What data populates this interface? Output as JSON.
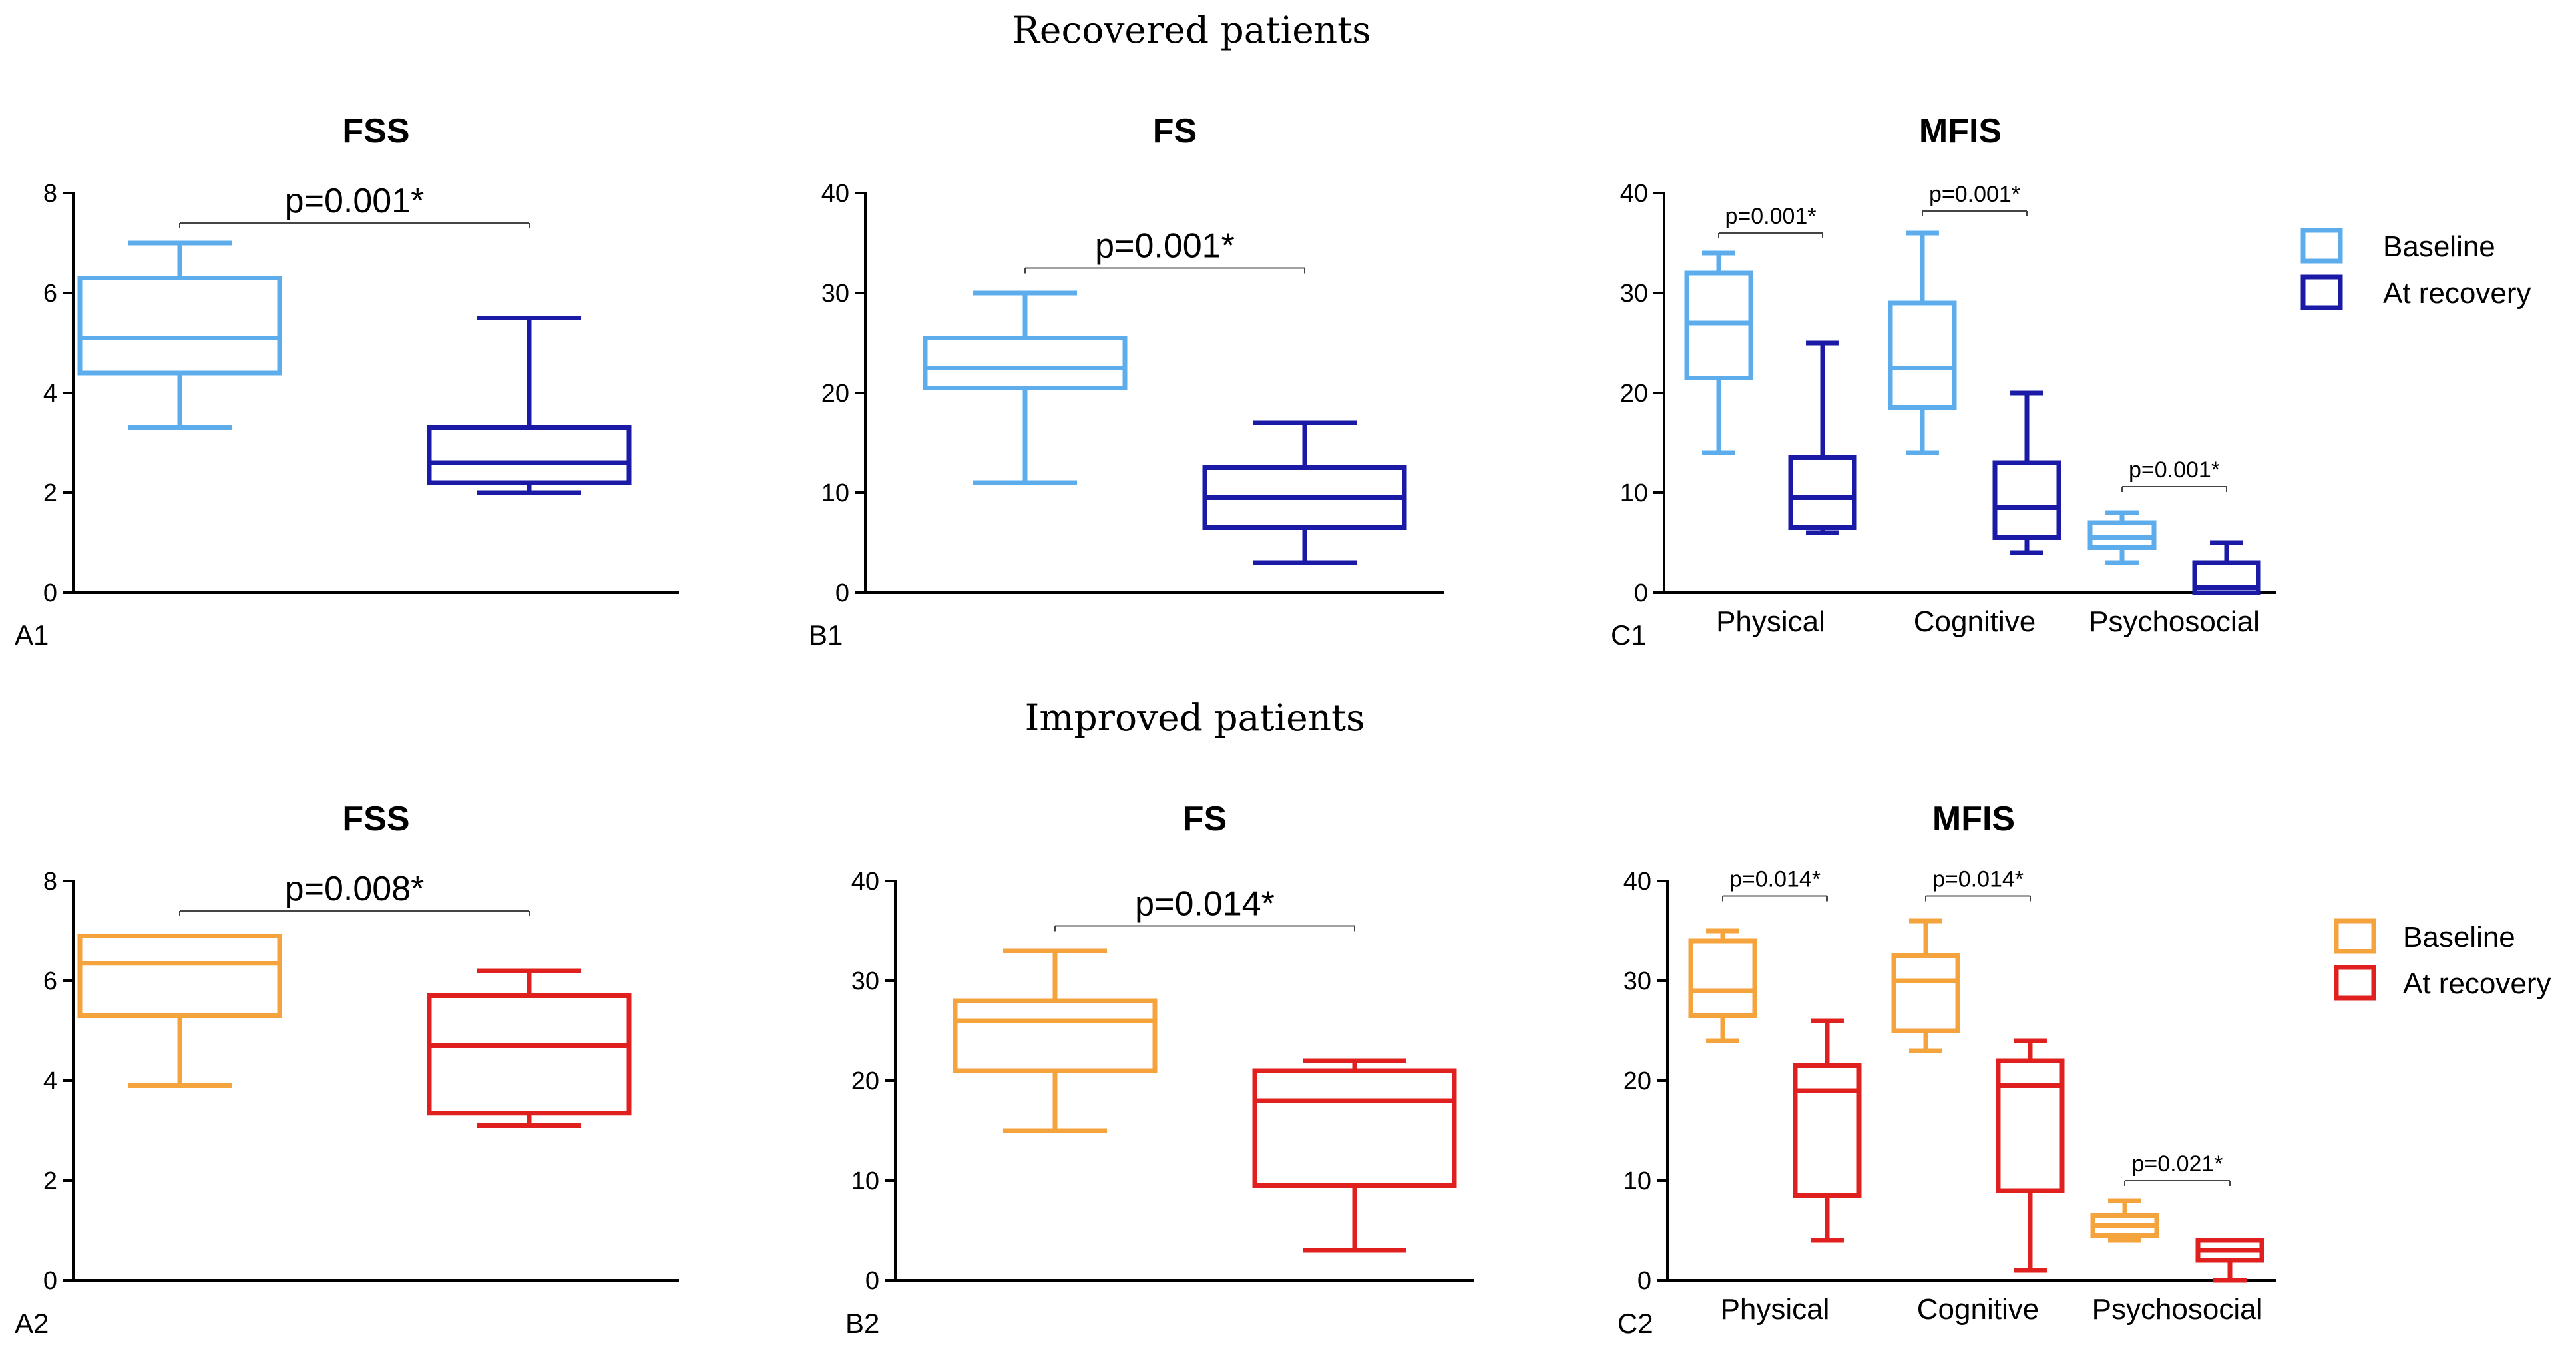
{
  "sections": [
    {
      "title": "Recovered patients"
    },
    {
      "title": "Improved patients"
    }
  ],
  "legends": [
    {
      "items": [
        {
          "label": "Baseline",
          "color": "#5DADEC"
        },
        {
          "label": "At recovery",
          "color": "#1A1AA6"
        }
      ]
    },
    {
      "items": [
        {
          "label": "Baseline",
          "color": "#F5A33C"
        },
        {
          "label": "At recovery",
          "color": "#E0201F"
        }
      ]
    }
  ],
  "chart_data": [
    {
      "type": "box",
      "panel_label": "A1",
      "title": "FSS",
      "ylim": [
        0,
        8
      ],
      "yticks": [
        "0",
        "2",
        "4",
        "6",
        "8"
      ],
      "categories": [
        ""
      ],
      "series": [
        {
          "name": "Baseline",
          "color": "#5DADEC",
          "boxes": [
            {
              "min": 3.3,
              "q1": 4.4,
              "median": 5.1,
              "q3": 6.3,
              "max": 7.0
            }
          ]
        },
        {
          "name": "At recovery",
          "color": "#1A1AA6",
          "boxes": [
            {
              "min": 2.0,
              "q1": 2.2,
              "median": 2.6,
              "q3": 3.3,
              "max": 5.5
            }
          ]
        }
      ],
      "annotations": [
        {
          "text": "p=0.001*",
          "category": 0,
          "y": 7.4
        }
      ]
    },
    {
      "type": "box",
      "panel_label": "B1",
      "title": "FS",
      "ylim": [
        0,
        40
      ],
      "yticks": [
        "0",
        "10",
        "20",
        "30",
        "40"
      ],
      "categories": [
        ""
      ],
      "series": [
        {
          "name": "Baseline",
          "color": "#5DADEC",
          "boxes": [
            {
              "min": 11,
              "q1": 20.5,
              "median": 22.5,
              "q3": 25.5,
              "max": 30
            }
          ]
        },
        {
          "name": "At recovery",
          "color": "#1A1AA6",
          "boxes": [
            {
              "min": 3,
              "q1": 6.5,
              "median": 9.5,
              "q3": 12.5,
              "max": 17
            }
          ]
        }
      ],
      "annotations": [
        {
          "text": "p=0.001*",
          "category": 0,
          "y": 32.5
        }
      ]
    },
    {
      "type": "box",
      "panel_label": "C1",
      "title": "MFIS",
      "ylim": [
        0,
        40
      ],
      "yticks": [
        "0",
        "10",
        "20",
        "30",
        "40"
      ],
      "categories": [
        "Physical",
        "Cognitive",
        "Psychosocial"
      ],
      "series": [
        {
          "name": "Baseline",
          "color": "#5DADEC",
          "boxes": [
            {
              "min": 14,
              "q1": 21.5,
              "median": 27,
              "q3": 32,
              "max": 34
            },
            {
              "min": 14,
              "q1": 18.5,
              "median": 22.5,
              "q3": 29,
              "max": 36
            },
            {
              "min": 3,
              "q1": 4.5,
              "median": 5.5,
              "q3": 7,
              "max": 8
            }
          ]
        },
        {
          "name": "At recovery",
          "color": "#1A1AA6",
          "boxes": [
            {
              "min": 6,
              "q1": 6.5,
              "median": 9.5,
              "q3": 13.5,
              "max": 25
            },
            {
              "min": 4,
              "q1": 5.5,
              "median": 8.5,
              "q3": 13,
              "max": 20
            },
            {
              "min": 0,
              "q1": 0,
              "median": 0.5,
              "q3": 3,
              "max": 5
            }
          ]
        }
      ],
      "annotations": [
        {
          "text": "p=0.001*",
          "category": 0,
          "y": 36
        },
        {
          "text": "p=0.001*",
          "category": 1,
          "y": 38.2
        },
        {
          "text": "p=0.001*",
          "category": 2,
          "y": 10.6
        }
      ]
    },
    {
      "type": "box",
      "panel_label": "A2",
      "title": "FSS",
      "ylim": [
        0,
        8
      ],
      "yticks": [
        "0",
        "2",
        "4",
        "6",
        "8"
      ],
      "categories": [
        ""
      ],
      "series": [
        {
          "name": "Baseline",
          "color": "#F5A33C",
          "boxes": [
            {
              "min": 3.9,
              "q1": 5.3,
              "median": 6.35,
              "q3": 6.9,
              "max": 6.9
            }
          ]
        },
        {
          "name": "At recovery",
          "color": "#E0201F",
          "boxes": [
            {
              "min": 3.1,
              "q1": 3.35,
              "median": 4.7,
              "q3": 5.7,
              "max": 6.2
            }
          ]
        }
      ],
      "annotations": [
        {
          "text": "p=0.008*",
          "category": 0,
          "y": 7.4
        }
      ]
    },
    {
      "type": "box",
      "panel_label": "B2",
      "title": "FS",
      "ylim": [
        0,
        40
      ],
      "yticks": [
        "0",
        "10",
        "20",
        "30",
        "40"
      ],
      "categories": [
        ""
      ],
      "series": [
        {
          "name": "Baseline",
          "color": "#F5A33C",
          "boxes": [
            {
              "min": 15,
              "q1": 21,
              "median": 26,
              "q3": 28,
              "max": 33
            }
          ]
        },
        {
          "name": "At recovery",
          "color": "#E0201F",
          "boxes": [
            {
              "min": 3,
              "q1": 9.5,
              "median": 18,
              "q3": 21,
              "max": 22
            }
          ]
        }
      ],
      "annotations": [
        {
          "text": "p=0.014*",
          "category": 0,
          "y": 35.5
        }
      ]
    },
    {
      "type": "box",
      "panel_label": "C2",
      "title": "MFIS",
      "ylim": [
        0,
        40
      ],
      "yticks": [
        "0",
        "10",
        "20",
        "30",
        "40"
      ],
      "categories": [
        "Physical",
        "Cognitive",
        "Psychosocial"
      ],
      "series": [
        {
          "name": "Baseline",
          "color": "#F5A33C",
          "boxes": [
            {
              "min": 24,
              "q1": 26.5,
              "median": 29,
              "q3": 34,
              "max": 35
            },
            {
              "min": 23,
              "q1": 25,
              "median": 30,
              "q3": 32.5,
              "max": 36
            },
            {
              "min": 4,
              "q1": 4.5,
              "median": 5.5,
              "q3": 6.5,
              "max": 8
            }
          ]
        },
        {
          "name": "At recovery",
          "color": "#E0201F",
          "boxes": [
            {
              "min": 4,
              "q1": 8.5,
              "median": 19,
              "q3": 21.5,
              "max": 26
            },
            {
              "min": 1,
              "q1": 9,
              "median": 19.5,
              "q3": 22,
              "max": 24
            },
            {
              "min": 0,
              "q1": 2,
              "median": 3,
              "q3": 4,
              "max": 4
            }
          ]
        }
      ],
      "annotations": [
        {
          "text": "p=0.014*",
          "category": 0,
          "y": 38.5
        },
        {
          "text": "p=0.014*",
          "category": 1,
          "y": 38.5
        },
        {
          "text": "p=0.021*",
          "category": 2,
          "y": 10
        }
      ]
    }
  ]
}
